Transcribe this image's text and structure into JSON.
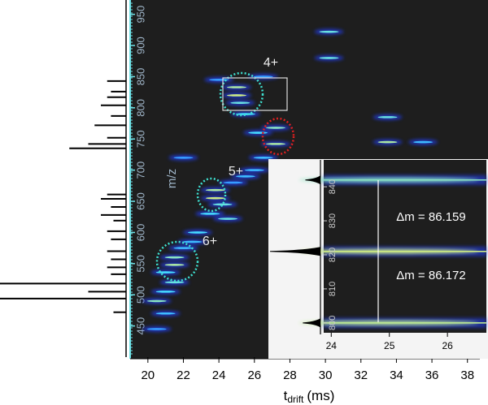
{
  "chart_data": {
    "type": "heatmap",
    "xlabel": {
      "main": "t",
      "sub": "drift",
      "unit": "(ms)"
    },
    "ylabel": "m/z",
    "xlim": [
      19,
      38.7
    ],
    "ylim": [
      400,
      973
    ],
    "xticks": [
      20,
      22,
      24,
      26,
      28,
      30,
      32,
      34,
      36,
      38
    ],
    "yticks": [
      450,
      500,
      550,
      600,
      650,
      700,
      750,
      800,
      850,
      900,
      950
    ],
    "annotations": [
      "4+",
      "5+",
      "6+"
    ],
    "spectrum": {
      "mz": [
        843,
        826,
        817,
        804,
        787,
        772,
        752,
        742,
        735,
        661,
        654,
        641,
        628,
        619,
        602,
        589,
        570,
        557,
        544,
        533,
        518,
        505,
        494,
        472
      ],
      "intensity": [
        0.15,
        0.12,
        0.15,
        0.2,
        0.12,
        0.25,
        0.15,
        0.3,
        0.45,
        0.15,
        0.2,
        0.12,
        0.2,
        0.1,
        0.15,
        0.12,
        0.15,
        0.12,
        0.15,
        0.12,
        1.0,
        0.3,
        1.0,
        0.1
      ]
    },
    "streaks": {
      "x": [
        21.5,
        21.5,
        21,
        21.5,
        21,
        20.5,
        21,
        20.5,
        23.8,
        23.8,
        24.2,
        23.5,
        24.5,
        22.8,
        22.5,
        22,
        25,
        25,
        25.2,
        25.5,
        26.2,
        27.2,
        27.2,
        26.5,
        26,
        25.5,
        24.8,
        30.2,
        30.2,
        33.5,
        33.5,
        35.5,
        26.5,
        24,
        22
      ],
      "y": [
        560,
        548,
        536,
        520,
        505,
        490,
        470,
        445,
        668,
        655,
        645,
        630,
        622,
        600,
        585,
        575,
        833,
        820,
        808,
        790,
        760,
        768,
        742,
        720,
        700,
        690,
        680,
        922,
        880,
        785,
        745,
        745,
        850,
        845,
        720
      ],
      "values": [
        0.7,
        0.8,
        0.5,
        0.6,
        0.5,
        0.7,
        0.4,
        0.3,
        0.8,
        0.9,
        0.6,
        0.5,
        0.6,
        0.5,
        0.4,
        0.4,
        0.8,
        0.9,
        0.6,
        0.5,
        0.5,
        0.7,
        0.8,
        0.4,
        0.4,
        0.4,
        0.3,
        0.6,
        0.6,
        0.6,
        0.8,
        0.4,
        0.3,
        0.3,
        0.3
      ]
    },
    "inset": {
      "xlim": [
        23.87,
        26.67
      ],
      "ylim": [
        797.1,
        847.9
      ],
      "xticks": [
        24,
        25,
        26
      ],
      "yticks": [
        800,
        810,
        820,
        830,
        840
      ],
      "bands": {
        "y": [
          842,
          821,
          800
        ],
        "values": [
          0.7,
          0.9,
          0.85
        ]
      },
      "spectrum": {
        "mz": [
          842,
          821,
          800
        ],
        "intensity": [
          0.3,
          1.0,
          0.35
        ]
      },
      "annotations": [
        "Δm = 86.159",
        "Δm = 86.172"
      ]
    }
  }
}
